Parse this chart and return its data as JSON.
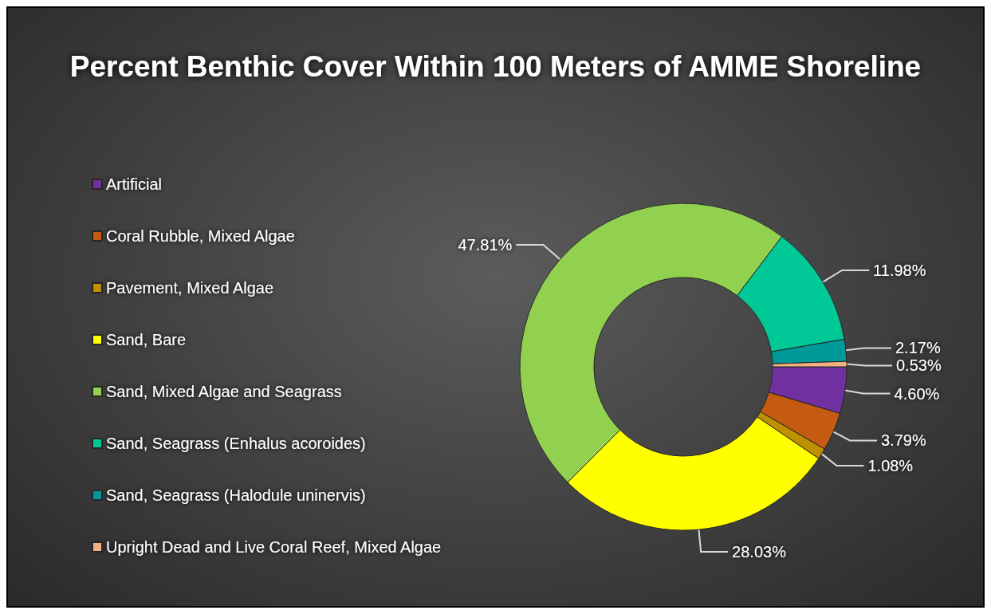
{
  "chart_data": {
    "type": "donut",
    "title": "Percent Benthic Cover Within 100 Meters of AMME Shoreline",
    "categories": [
      "Artificial",
      "Coral Rubble, Mixed Algae",
      "Pavement, Mixed Algae",
      "Sand, Bare",
      "Sand, Mixed Algae and Seagrass",
      "Sand, Seagrass (Enhalus acoroides)",
      "Sand, Seagrass (Halodule uninervis)",
      "Upright Dead and Live Coral Reef, Mixed Algae"
    ],
    "values": [
      4.6,
      3.79,
      1.08,
      28.03,
      47.81,
      11.98,
      2.17,
      0.53
    ],
    "colors": [
      "#7030a0",
      "#c55a11",
      "#bf9000",
      "#ffff00",
      "#92d050",
      "#00c896",
      "#009999",
      "#f4b183"
    ],
    "value_labels": [
      "4.60%",
      "3.79%",
      "1.08%",
      "28.03%",
      "47.81%",
      "11.98%",
      "2.17%",
      "0.53%"
    ],
    "legend": "left"
  }
}
